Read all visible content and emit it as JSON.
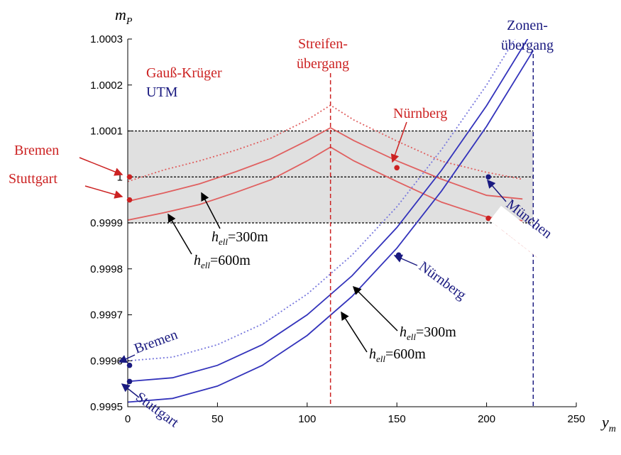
{
  "chart_data": {
    "type": "line",
    "ylabel": "m",
    "ylabel_sub": "P",
    "xlabel": "y",
    "xlabel_sub": "m",
    "xlim": [
      0,
      250
    ],
    "ylim": [
      0.9995,
      1.0003
    ],
    "xticks": [
      0,
      50,
      100,
      150,
      200,
      250
    ],
    "xtick_labels": [
      "0",
      "50",
      "100",
      "150",
      "200",
      "250"
    ],
    "yticks": [
      0.9995,
      0.9996,
      0.9997,
      0.9998,
      0.9999,
      1.0,
      1.0001,
      1.0002,
      1.0003
    ],
    "ytick_labels": [
      "0.9995",
      "0.9996",
      "0.9997",
      "0.9998",
      "0.9999",
      "1",
      "1.0001",
      "1.0002",
      "1.0003"
    ],
    "band": {
      "from": 0.9999,
      "to": 1.0001,
      "color": "#e0e0e0"
    },
    "hlines": [
      0.9999,
      1.0,
      1.0001
    ],
    "vlines": [
      {
        "x": 113,
        "color": "#cc2222",
        "label_lines": [
          "Streifen-",
          "übergang"
        ]
      },
      {
        "x": 226,
        "color": "#1a1a80",
        "label_lines": [
          "Zonen-",
          "übergang"
        ]
      }
    ],
    "legend": [
      {
        "text": "Gauß-Krüger",
        "color": "#cc2222"
      },
      {
        "text": "UTM",
        "color": "#1a1a80"
      }
    ],
    "series": [
      {
        "group": "gk",
        "style": "dotted",
        "color": "#e06060",
        "x": [
          0,
          20,
          40,
          60,
          80,
          100,
          113,
          126,
          150,
          175,
          200,
          220
        ],
        "y": [
          0.99999,
          1.000015,
          1.000035,
          1.000058,
          1.000085,
          1.000124,
          1.000156,
          1.000124,
          1.000078,
          1.000034,
          1.00001,
          0.999995
        ]
      },
      {
        "group": "gk",
        "style": "solid",
        "color": "#e06060",
        "x": [
          0,
          20,
          40,
          60,
          80,
          100,
          113,
          126,
          150,
          175,
          200,
          220
        ],
        "y": [
          0.999947,
          0.999965,
          0.999985,
          1.000011,
          1.00004,
          1.000079,
          1.000107,
          1.000079,
          1.000035,
          0.999995,
          0.99996,
          0.999952
        ]
      },
      {
        "group": "gk",
        "style": "solid",
        "color": "#e06060",
        "x": [
          0,
          20,
          40,
          60,
          80,
          100,
          113,
          126,
          150,
          175,
          200,
          220
        ],
        "y": [
          0.999906,
          0.999922,
          0.99994,
          0.999966,
          0.999994,
          1.000035,
          1.000065,
          1.000035,
          0.99999,
          0.999945,
          0.999913,
          0.999905
        ]
      },
      {
        "group": "utm",
        "style": "dotted",
        "color": "#7777dd",
        "x": [
          0,
          25,
          50,
          75,
          100,
          125,
          150,
          175,
          200,
          226
        ],
        "y": [
          0.9996,
          0.999608,
          0.999635,
          0.99968,
          0.999745,
          0.99983,
          0.999935,
          1.00006,
          1.0002,
          1.000365
        ]
      },
      {
        "group": "utm",
        "style": "solid",
        "color": "#3333bb",
        "x": [
          0,
          25,
          50,
          75,
          100,
          125,
          150,
          175,
          200,
          226
        ],
        "y": [
          0.999555,
          0.999563,
          0.99959,
          0.999635,
          0.9997,
          0.999785,
          0.99989,
          1.000015,
          1.000155,
          1.00032
        ]
      },
      {
        "group": "utm",
        "style": "solid",
        "color": "#3333bb",
        "x": [
          0,
          25,
          50,
          75,
          100,
          125,
          150,
          175,
          200,
          226
        ],
        "y": [
          0.99951,
          0.999518,
          0.999545,
          0.99959,
          0.999655,
          0.99974,
          0.999845,
          0.99997,
          1.00011,
          1.000275
        ]
      }
    ],
    "points": [
      {
        "x": 1,
        "y": 1.0,
        "color": "#cc2222"
      },
      {
        "x": 1,
        "y": 0.99995,
        "color": "#cc2222"
      },
      {
        "x": 150,
        "y": 1.00002,
        "color": "#cc2222"
      },
      {
        "x": 201,
        "y": 0.99991,
        "color": "#cc2222"
      },
      {
        "x": 1,
        "y": 0.99959,
        "color": "#1a1a80"
      },
      {
        "x": 1,
        "y": 0.999555,
        "color": "#1a1a80"
      },
      {
        "x": 151,
        "y": 0.99983,
        "color": "#1a1a80"
      },
      {
        "x": 201,
        "y": 1.0,
        "color": "#1a1a80"
      }
    ],
    "annotations": {
      "bremen_red": "Bremen",
      "stuttgart_red": "Stuttgart",
      "nuernberg_red": "Nürnberg",
      "muenchen_red": "München",
      "bremen_blue": "Bremen",
      "stuttgart_blue": "Stuttgart",
      "nuernberg_blue": "Nürnberg",
      "muenchen_blue": "München",
      "h_prefix": "h",
      "h_sub": "ell",
      "gk_300": "=300m",
      "gk_600": "=600m",
      "utm_300": "=300m",
      "utm_600": "=600m"
    }
  }
}
